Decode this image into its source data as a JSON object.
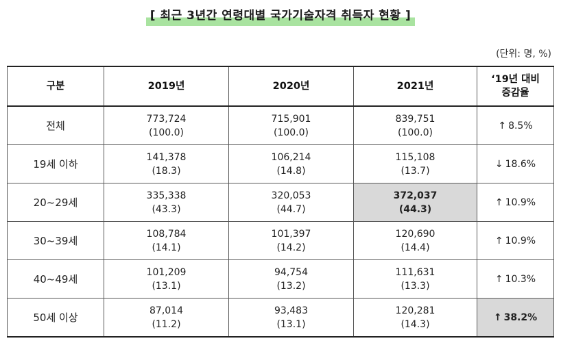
{
  "title": "[ 최근 3년간 연령대별 국가기술자격 취득자 현황 ]",
  "unit": "(단위: 명, %)",
  "headers": {
    "category": "구분",
    "y2019": "2019년",
    "y2020": "2020년",
    "y2021": "2021년",
    "change_line1": "‘19년 대비",
    "change_line2": "증감율"
  },
  "rows": [
    {
      "label": "전체",
      "y2019": {
        "value": "773,724",
        "pct": "(100.0)"
      },
      "y2020": {
        "value": "715,901",
        "pct": "(100.0)"
      },
      "y2021": {
        "value": "839,751",
        "pct": "(100.0)"
      },
      "change": {
        "arrow": "↑",
        "rate": "8.5%"
      }
    },
    {
      "label": "19세 이하",
      "y2019": {
        "value": "141,378",
        "pct": "(18.3)"
      },
      "y2020": {
        "value": "106,214",
        "pct": "(14.8)"
      },
      "y2021": {
        "value": "115,108",
        "pct": "(13.7)"
      },
      "change": {
        "arrow": "↓",
        "rate": "18.6%"
      }
    },
    {
      "label": "20~29세",
      "y2019": {
        "value": "335,338",
        "pct": "(43.3)"
      },
      "y2020": {
        "value": "320,053",
        "pct": "(44.7)"
      },
      "y2021": {
        "value": "372,037",
        "pct": "(44.3)"
      },
      "change": {
        "arrow": "↑",
        "rate": "10.9%"
      }
    },
    {
      "label": "30~39세",
      "y2019": {
        "value": "108,784",
        "pct": "(14.1)"
      },
      "y2020": {
        "value": "101,397",
        "pct": "(14.2)"
      },
      "y2021": {
        "value": "120,690",
        "pct": "(14.4)"
      },
      "change": {
        "arrow": "↑",
        "rate": "10.9%"
      }
    },
    {
      "label": "40~49세",
      "y2019": {
        "value": "101,209",
        "pct": "(13.1)"
      },
      "y2020": {
        "value": "94,754",
        "pct": "(13.2)"
      },
      "y2021": {
        "value": "111,631",
        "pct": "(13.3)"
      },
      "change": {
        "arrow": "↑",
        "rate": "10.3%"
      }
    },
    {
      "label": "50세 이상",
      "y2019": {
        "value": "87,014",
        "pct": "(11.2)"
      },
      "y2020": {
        "value": "93,483",
        "pct": "(13.1)"
      },
      "y2021": {
        "value": "120,281",
        "pct": "(14.3)"
      },
      "change": {
        "arrow": "↑",
        "rate": "38.2%"
      }
    }
  ],
  "colors": {
    "title_highlight": "#a9e3a0",
    "cell_highlight": "#d9d9d9"
  }
}
